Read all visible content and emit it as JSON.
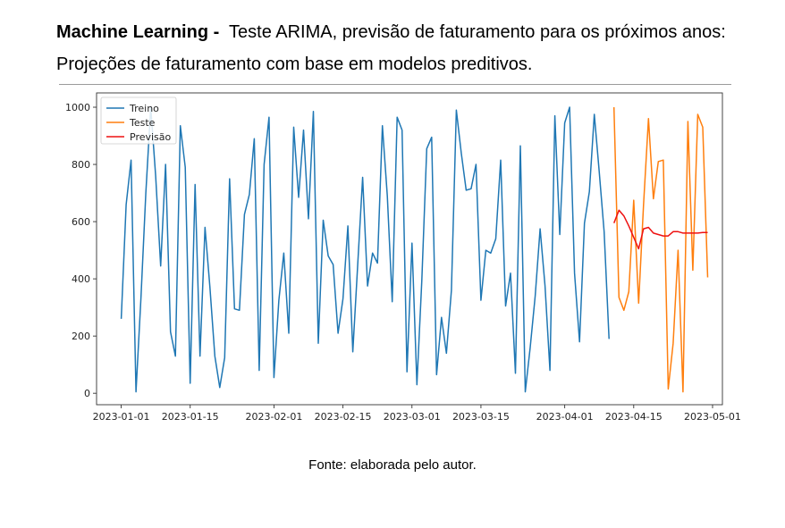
{
  "header": {
    "title_bold": "Machine Learning -",
    "title_rest": "Teste ARIMA, previsão de faturamento para os próximos anos:",
    "subtitle": "Projeções de faturamento com base em modelos preditivos."
  },
  "caption": "Fonte: elaborada pelo autor.",
  "chart_data": {
    "type": "line",
    "title": "",
    "xlabel": "",
    "ylabel": "",
    "x_type": "date",
    "xlim": [
      "2022-12-27",
      "2023-05-03"
    ],
    "ylim": [
      -40,
      1050
    ],
    "x_ticks": [
      "2023-01-01",
      "2023-01-15",
      "2023-02-01",
      "2023-02-15",
      "2023-03-01",
      "2023-03-15",
      "2023-04-01",
      "2023-04-15",
      "2023-05-01"
    ],
    "y_ticks": [
      0,
      200,
      400,
      600,
      800,
      1000
    ],
    "grid": false,
    "legend_position": "top-left",
    "series": [
      {
        "name": "Treino",
        "color": "#1f77b4",
        "x_start": "2023-01-01",
        "values": [
          260,
          660,
          815,
          5,
          330,
          700,
          1000,
          760,
          445,
          800,
          215,
          130,
          935,
          790,
          35,
          730,
          130,
          580,
          370,
          130,
          20,
          125,
          750,
          295,
          290,
          625,
          695,
          890,
          80,
          800,
          965,
          55,
          325,
          490,
          210,
          930,
          685,
          920,
          610,
          985,
          175,
          605,
          480,
          450,
          210,
          330,
          585,
          145,
          450,
          755,
          375,
          490,
          455,
          935,
          690,
          320,
          965,
          920,
          75,
          525,
          30,
          395,
          855,
          895,
          65,
          265,
          140,
          360,
          990,
          840,
          710,
          715,
          800,
          325,
          500,
          490,
          540,
          815,
          305,
          420,
          70,
          865,
          5,
          160,
          340,
          575,
          375,
          80,
          970,
          555,
          945,
          1000,
          420,
          180,
          595,
          705,
          975,
          775,
          565,
          190
        ]
      },
      {
        "name": "Teste",
        "color": "#ff7f0e",
        "x_start": "2023-04-11",
        "values": [
          1000,
          335,
          290,
          355,
          675,
          315,
          660,
          960,
          680,
          810,
          815,
          15,
          175,
          500,
          5,
          950,
          430,
          975,
          930,
          405
        ]
      },
      {
        "name": "Previsão",
        "color": "#ee1111",
        "x_start": "2023-04-11",
        "values": [
          595,
          640,
          620,
          585,
          545,
          505,
          575,
          580,
          560,
          555,
          550,
          550,
          565,
          565,
          560,
          560,
          560,
          560,
          562,
          562
        ]
      }
    ]
  }
}
